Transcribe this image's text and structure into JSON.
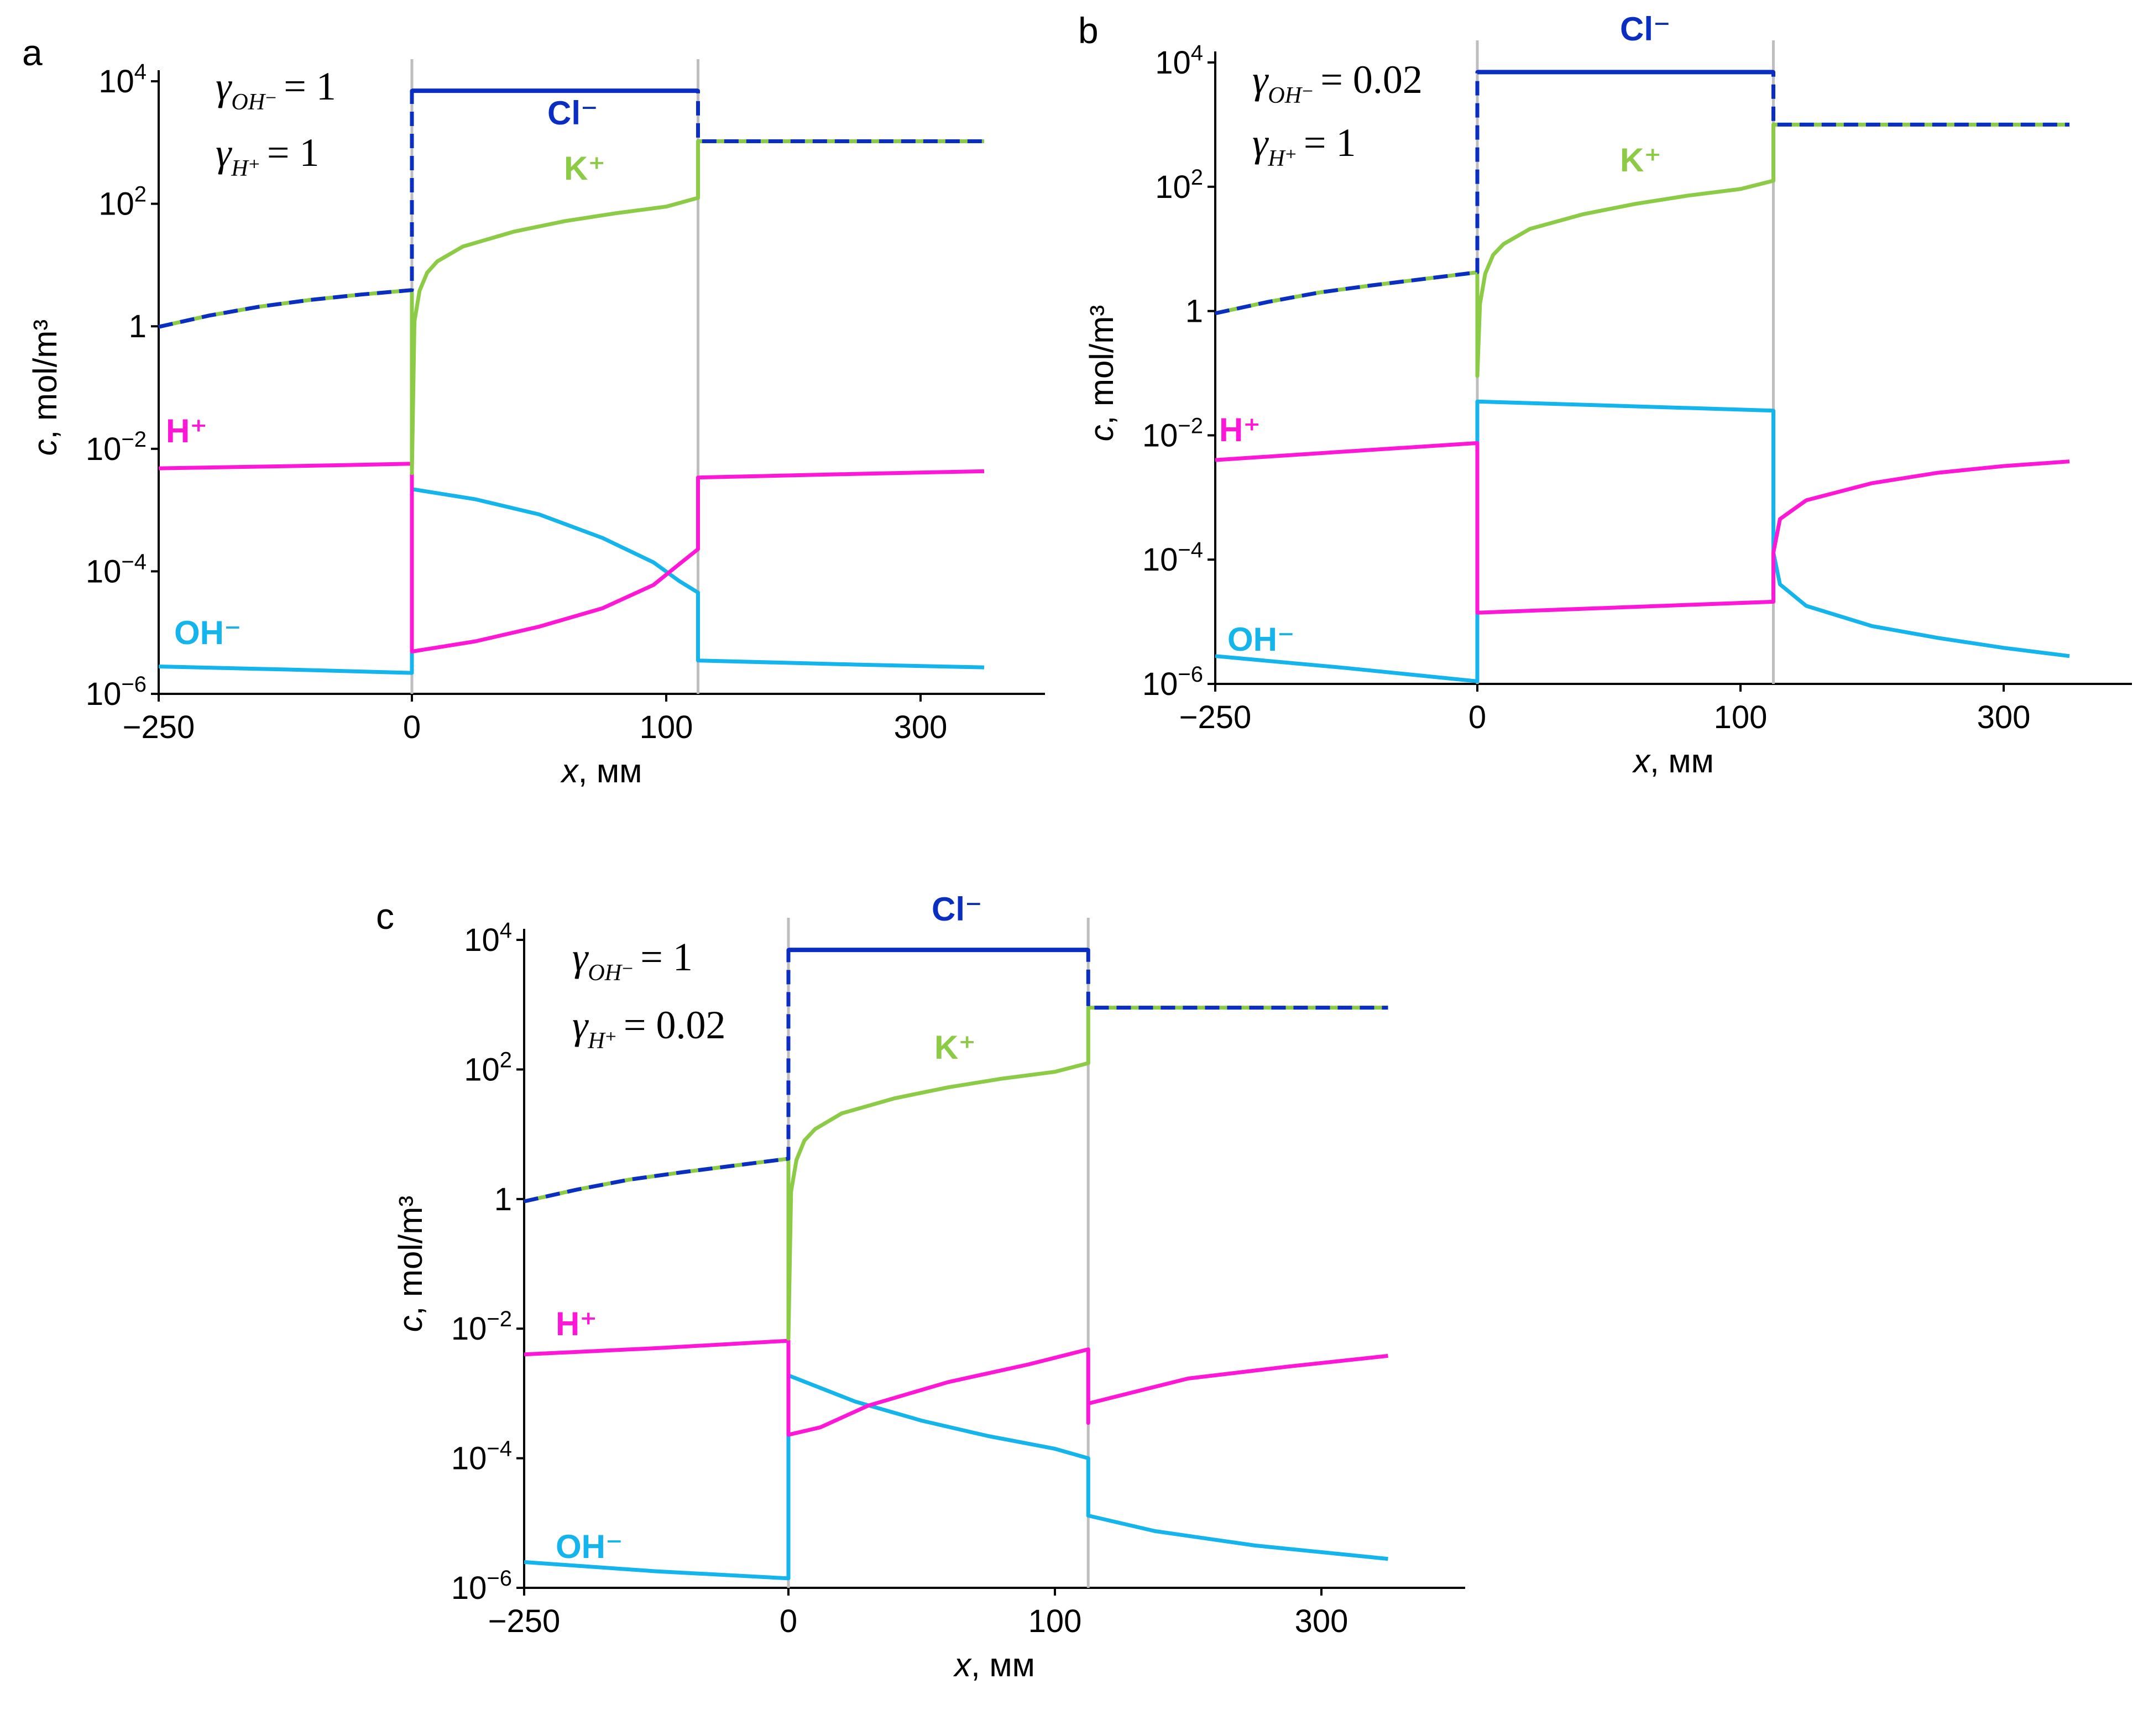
{
  "figure": {
    "colors": {
      "cl": "#0B2EC2",
      "k": "#8CCB45",
      "h": "#FF17D8",
      "oh": "#14B4EC",
      "boundary": "#BEBEBE",
      "axis": "#000000"
    },
    "panels": [
      {
        "letter": "a",
        "gamma_oh_label": "γ",
        "gamma_oh_sub": "OH⁻",
        "gamma_oh_value": "= 1",
        "gamma_h_label": "γ",
        "gamma_h_sub": "H⁺",
        "gamma_h_value": "= 1",
        "species_labels": {
          "cl": "Cl⁻",
          "k": "K⁺",
          "h": "H⁺",
          "oh": "OH⁻"
        }
      },
      {
        "letter": "b",
        "gamma_oh_label": "γ",
        "gamma_oh_sub": "OH⁻",
        "gamma_oh_value": "= 0.02",
        "gamma_h_label": "γ",
        "gamma_h_sub": "H⁺",
        "gamma_h_value": "= 1",
        "species_labels": {
          "cl": "Cl⁻",
          "k": "K⁺",
          "h": "H⁺",
          "oh": "OH⁻"
        }
      },
      {
        "letter": "c",
        "gamma_oh_label": "γ",
        "gamma_oh_sub": "OH⁻",
        "gamma_oh_value": "= 1",
        "gamma_h_label": "γ",
        "gamma_h_sub": "H⁺",
        "gamma_h_value": "= 0.02",
        "species_labels": {
          "cl": "Cl⁻",
          "k": "K⁺",
          "h": "H⁺",
          "oh": "OH⁻"
        }
      }
    ]
  },
  "chart_data": [
    {
      "type": "line",
      "panel": "a",
      "xlabel": "x, мм",
      "ylabel": "c, mol/m³",
      "yscale": "log",
      "ylim": [
        1e-06,
        10000
      ],
      "y_ticks": [
        {
          "value": 10000,
          "base": "10",
          "exp": "4"
        },
        {
          "value": 100,
          "base": "10",
          "exp": "2"
        },
        {
          "value": 1,
          "base": "1",
          "exp": ""
        },
        {
          "value": 0.01,
          "base": "10",
          "exp": "−2"
        },
        {
          "value": 0.0001,
          "base": "10",
          "exp": "−4"
        },
        {
          "value": 1e-06,
          "base": "10",
          "exp": "−6"
        }
      ],
      "x_ticks": [
        {
          "value": -250,
          "label": "−250"
        },
        {
          "value": 0,
          "label": "0"
        },
        {
          "value": 100,
          "label": "100"
        },
        {
          "value": 300,
          "label": "300"
        }
      ],
      "boundaries": [
        0,
        125
      ],
      "series": [
        {
          "name": "Cl⁻",
          "key": "cl",
          "points": [
            [
              -250,
              0.98
            ],
            [
              -200,
              1.5
            ],
            [
              -150,
              2.1
            ],
            [
              -100,
              2.7
            ],
            [
              -50,
              3.3
            ],
            [
              0,
              3.9
            ],
            [
              0,
              7000
            ],
            [
              125,
              7000
            ],
            [
              125,
              1050
            ],
            [
              350,
              1050
            ]
          ]
        },
        {
          "name": "K⁺",
          "key": "k",
          "points": [
            [
              -250,
              0.98
            ],
            [
              -200,
              1.5
            ],
            [
              -150,
              2.1
            ],
            [
              -100,
              2.7
            ],
            [
              -50,
              3.3
            ],
            [
              0,
              3.9
            ],
            [
              0,
              0.004
            ],
            [
              1,
              1.2
            ],
            [
              3,
              3.8
            ],
            [
              6,
              7.5
            ],
            [
              10,
              11.5
            ],
            [
              20,
              20
            ],
            [
              40,
              35
            ],
            [
              60,
              52
            ],
            [
              80,
              70
            ],
            [
              100,
              90
            ],
            [
              125,
              125
            ],
            [
              125,
              1050
            ],
            [
              350,
              1050
            ]
          ]
        },
        {
          "name": "H⁺",
          "key": "h",
          "points": [
            [
              -250,
              0.0048
            ],
            [
              -125,
              0.0052
            ],
            [
              0,
              0.0057
            ],
            [
              0,
              4.9e-06
            ],
            [
              25,
              7.2e-06
            ],
            [
              50,
              1.25e-05
            ],
            [
              75,
              2.5e-05
            ],
            [
              95,
              6e-05
            ],
            [
              110,
              0.00013
            ],
            [
              125,
              0.00023
            ],
            [
              125,
              0.0034
            ],
            [
              250,
              0.0039
            ],
            [
              350,
              0.0043
            ]
          ]
        },
        {
          "name": "OH⁻",
          "key": "oh",
          "points": [
            [
              -250,
              2.8e-06
            ],
            [
              -125,
              2.5e-06
            ],
            [
              0,
              2.2e-06
            ],
            [
              0,
              0.0022
            ],
            [
              25,
              0.0015
            ],
            [
              50,
              0.00085
            ],
            [
              75,
              0.00035
            ],
            [
              95,
              0.00014
            ],
            [
              110,
              7e-05
            ],
            [
              125,
              4.5e-05
            ],
            [
              125,
              3.5e-06
            ],
            [
              250,
              3e-06
            ],
            [
              350,
              2.7e-06
            ]
          ]
        }
      ]
    },
    {
      "type": "line",
      "panel": "b",
      "xlabel": "x, мм",
      "ylabel": "c, mol/m³",
      "yscale": "log",
      "ylim": [
        1e-06,
        10000
      ],
      "y_ticks": [
        {
          "value": 10000,
          "base": "10",
          "exp": "4"
        },
        {
          "value": 100,
          "base": "10",
          "exp": "2"
        },
        {
          "value": 1,
          "base": "1",
          "exp": ""
        },
        {
          "value": 0.01,
          "base": "10",
          "exp": "−2"
        },
        {
          "value": 0.0001,
          "base": "10",
          "exp": "−4"
        },
        {
          "value": 1e-06,
          "base": "10",
          "exp": "−6"
        }
      ],
      "x_ticks": [
        {
          "value": -250,
          "label": "−250"
        },
        {
          "value": 0,
          "label": "0"
        },
        {
          "value": 100,
          "label": "100"
        },
        {
          "value": 300,
          "label": "300"
        }
      ],
      "boundaries": [
        0,
        125
      ],
      "series": [
        {
          "name": "Cl⁻",
          "key": "cl",
          "points": [
            [
              -250,
              0.92
            ],
            [
              -200,
              1.4
            ],
            [
              -150,
              2.0
            ],
            [
              -100,
              2.6
            ],
            [
              -50,
              3.3
            ],
            [
              0,
              4.2
            ],
            [
              0,
              7000
            ],
            [
              125,
              7000
            ],
            [
              125,
              1000
            ],
            [
              350,
              1000
            ]
          ]
        },
        {
          "name": "K⁺",
          "key": "k",
          "points": [
            [
              -250,
              0.92
            ],
            [
              -200,
              1.4
            ],
            [
              -150,
              2.0
            ],
            [
              -100,
              2.6
            ],
            [
              -50,
              3.3
            ],
            [
              0,
              4.2
            ],
            [
              0,
              0.09
            ],
            [
              1,
              1.3
            ],
            [
              3,
              4
            ],
            [
              6,
              8
            ],
            [
              10,
              12
            ],
            [
              20,
              21
            ],
            [
              40,
              36
            ],
            [
              60,
              53
            ],
            [
              80,
              72
            ],
            [
              100,
              92
            ],
            [
              125,
              125
            ],
            [
              125,
              1000
            ],
            [
              350,
              1000
            ]
          ]
        },
        {
          "name": "H⁺",
          "key": "h",
          "points": [
            [
              -250,
              0.004
            ],
            [
              -125,
              0.0055
            ],
            [
              0,
              0.0075
            ],
            [
              0,
              1.4e-05
            ],
            [
              125,
              2.1e-05
            ],
            [
              125,
              0.00013
            ],
            [
              130,
              0.00045
            ],
            [
              150,
              0.0009
            ],
            [
              200,
              0.0017
            ],
            [
              250,
              0.0025
            ],
            [
              300,
              0.0032
            ],
            [
              350,
              0.0038
            ]
          ]
        },
        {
          "name": "OH⁻",
          "key": "oh",
          "points": [
            [
              -250,
              2.8e-06
            ],
            [
              -125,
              1.8e-06
            ],
            [
              0,
              1.1e-06
            ],
            [
              0,
              0.035
            ],
            [
              125,
              0.025
            ],
            [
              125,
              0.00013
            ],
            [
              130,
              4e-05
            ],
            [
              150,
              1.8e-05
            ],
            [
              200,
              8.5e-06
            ],
            [
              250,
              5.5e-06
            ],
            [
              300,
              3.8e-06
            ],
            [
              350,
              2.8e-06
            ]
          ]
        }
      ]
    },
    {
      "type": "line",
      "panel": "c",
      "xlabel": "x, мм",
      "ylabel": "c, mol/m³",
      "yscale": "log",
      "ylim": [
        1e-06,
        10000
      ],
      "y_ticks": [
        {
          "value": 10000,
          "base": "10",
          "exp": "4"
        },
        {
          "value": 100,
          "base": "10",
          "exp": "2"
        },
        {
          "value": 1,
          "base": "1",
          "exp": ""
        },
        {
          "value": 0.01,
          "base": "10",
          "exp": "−2"
        },
        {
          "value": 0.0001,
          "base": "10",
          "exp": "−4"
        },
        {
          "value": 1e-06,
          "base": "10",
          "exp": "−6"
        }
      ],
      "x_ticks": [
        {
          "value": -250,
          "label": "−250"
        },
        {
          "value": 0,
          "label": "0"
        },
        {
          "value": 100,
          "label": "100"
        },
        {
          "value": 300,
          "label": "300"
        }
      ],
      "boundaries": [
        0,
        125
      ],
      "series": [
        {
          "name": "Cl⁻",
          "key": "cl",
          "points": [
            [
              -250,
              0.92
            ],
            [
              -200,
              1.4
            ],
            [
              -150,
              2.0
            ],
            [
              -100,
              2.6
            ],
            [
              -50,
              3.3
            ],
            [
              0,
              4.2
            ],
            [
              0,
              7000
            ],
            [
              125,
              7000
            ],
            [
              125,
              900
            ],
            [
              350,
              900
            ]
          ]
        },
        {
          "name": "K⁺",
          "key": "k",
          "points": [
            [
              -250,
              0.92
            ],
            [
              -200,
              1.4
            ],
            [
              -150,
              2.0
            ],
            [
              -100,
              2.6
            ],
            [
              -50,
              3.3
            ],
            [
              0,
              4.2
            ],
            [
              0,
              0.007
            ],
            [
              1,
              1.3
            ],
            [
              3,
              4
            ],
            [
              6,
              8
            ],
            [
              10,
              12
            ],
            [
              20,
              21
            ],
            [
              40,
              36
            ],
            [
              60,
              53
            ],
            [
              80,
              72
            ],
            [
              100,
              92
            ],
            [
              125,
              125
            ],
            [
              125,
              900
            ],
            [
              350,
              900
            ]
          ]
        },
        {
          "name": "H⁺",
          "key": "h",
          "points": [
            [
              -250,
              0.004
            ],
            [
              -125,
              0.005
            ],
            [
              0,
              0.0065
            ],
            [
              0,
              0.00023
            ],
            [
              12,
              0.0003
            ],
            [
              30,
              0.00065
            ],
            [
              60,
              0.0015
            ],
            [
              90,
              0.0028
            ],
            [
              125,
              0.0048
            ],
            [
              125,
              0.00035
            ],
            [
              125,
              0.0007
            ],
            [
              200,
              0.0017
            ],
            [
              275,
              0.0026
            ],
            [
              350,
              0.0038
            ]
          ]
        },
        {
          "name": "OH⁻",
          "key": "oh",
          "points": [
            [
              -250,
              2.5e-06
            ],
            [
              -125,
              1.8e-06
            ],
            [
              0,
              1.4e-06
            ],
            [
              0,
              0.0019
            ],
            [
              25,
              0.00075
            ],
            [
              50,
              0.00038
            ],
            [
              75,
              0.00022
            ],
            [
              100,
              0.00014
            ],
            [
              125,
              0.0001
            ],
            [
              125,
              1.3e-05
            ],
            [
              175,
              7.5e-06
            ],
            [
              250,
              4.5e-06
            ],
            [
              350,
              2.8e-06
            ]
          ]
        }
      ]
    }
  ]
}
